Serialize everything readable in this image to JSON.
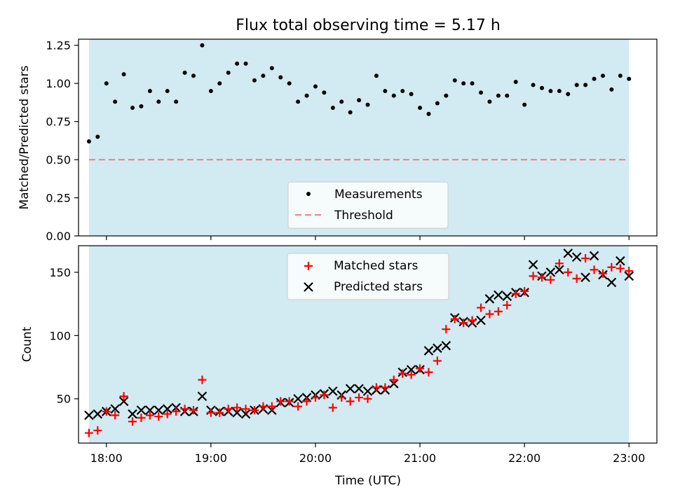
{
  "title": "Flux total observing time = 5.17 h",
  "colors": {
    "shade": "#add8e6",
    "measurement": "#000000",
    "threshold": "#f08080",
    "matched": "#ff0000",
    "predicted": "#000000"
  },
  "chart_data": [
    {
      "type": "scatter",
      "ylabel": "Matched/Predicted stars",
      "xlabel": "",
      "xlim": [
        "17:44",
        "23:16"
      ],
      "ylim": [
        0,
        1.29
      ],
      "grid": false,
      "legend_position": "lower-center",
      "yticks": [
        "0.00",
        "0.25",
        "0.50",
        "0.75",
        "1.00",
        "1.25"
      ],
      "observing_window": [
        "17:50",
        "23:00"
      ],
      "threshold": {
        "name": "Threshold",
        "value": 0.5,
        "style": "dashed"
      },
      "series": [
        {
          "name": "Measurements",
          "marker": "dot",
          "x": [
            "17:50",
            "17:55",
            "18:00",
            "18:05",
            "18:10",
            "18:15",
            "18:20",
            "18:25",
            "18:30",
            "18:35",
            "18:40",
            "18:45",
            "18:50",
            "18:55",
            "19:00",
            "19:05",
            "19:10",
            "19:15",
            "19:20",
            "19:25",
            "19:30",
            "19:35",
            "19:40",
            "19:45",
            "19:50",
            "19:55",
            "20:00",
            "20:05",
            "20:10",
            "20:15",
            "20:20",
            "20:25",
            "20:30",
            "20:35",
            "20:40",
            "20:45",
            "20:50",
            "20:55",
            "21:00",
            "21:05",
            "21:10",
            "21:15",
            "21:20",
            "21:25",
            "21:30",
            "21:35",
            "21:40",
            "21:45",
            "21:50",
            "21:55",
            "22:00",
            "22:05",
            "22:10",
            "22:15",
            "22:20",
            "22:25",
            "22:30",
            "22:35",
            "22:40",
            "22:45",
            "22:50",
            "22:55",
            "23:00"
          ],
          "y": [
            0.62,
            0.65,
            1.0,
            0.88,
            1.06,
            0.84,
            0.85,
            0.95,
            0.88,
            0.95,
            0.88,
            1.07,
            1.05,
            1.25,
            0.95,
            1.0,
            1.07,
            1.13,
            1.13,
            1.02,
            1.05,
            1.1,
            1.04,
            1.0,
            0.88,
            0.92,
            0.98,
            0.94,
            0.84,
            0.88,
            0.81,
            0.89,
            0.86,
            1.05,
            0.95,
            0.92,
            0.95,
            0.93,
            0.84,
            0.8,
            0.87,
            0.92,
            1.02,
            1.0,
            1.0,
            0.94,
            0.88,
            0.92,
            0.92,
            1.01,
            0.86,
            0.99,
            0.97,
            0.95,
            0.95,
            0.93,
            0.99,
            0.99,
            1.03,
            1.05,
            0.96,
            1.05,
            1.03
          ]
        }
      ]
    },
    {
      "type": "scatter",
      "ylabel": "Count",
      "xlabel": "Time (UTC)",
      "xlim": [
        "17:44",
        "23:16"
      ],
      "ylim": [
        15,
        171
      ],
      "grid": false,
      "legend_position": "upper-center",
      "yticks": [
        "50",
        "100",
        "150"
      ],
      "xticks": [
        "18:00",
        "19:00",
        "20:00",
        "21:00",
        "22:00",
        "23:00"
      ],
      "observing_window": [
        "17:50",
        "23:00"
      ],
      "x": [
        "17:50",
        "17:55",
        "18:00",
        "18:05",
        "18:10",
        "18:15",
        "18:20",
        "18:25",
        "18:30",
        "18:35",
        "18:40",
        "18:45",
        "18:50",
        "18:55",
        "19:00",
        "19:05",
        "19:10",
        "19:15",
        "19:20",
        "19:25",
        "19:30",
        "19:35",
        "19:40",
        "19:45",
        "19:50",
        "19:55",
        "20:00",
        "20:05",
        "20:10",
        "20:15",
        "20:20",
        "20:25",
        "20:30",
        "20:35",
        "20:40",
        "20:45",
        "20:50",
        "20:55",
        "21:00",
        "21:05",
        "21:10",
        "21:15",
        "21:20",
        "21:25",
        "21:30",
        "21:35",
        "21:40",
        "21:45",
        "21:50",
        "21:55",
        "22:00",
        "22:05",
        "22:10",
        "22:15",
        "22:20",
        "22:25",
        "22:30",
        "22:35",
        "22:40",
        "22:45",
        "22:50",
        "22:55",
        "23:00"
      ],
      "series": [
        {
          "name": "Matched stars",
          "marker": "plus",
          "values": [
            23,
            25,
            40,
            37,
            52,
            32,
            35,
            37,
            36,
            38,
            40,
            42,
            41,
            65,
            39,
            39,
            42,
            43,
            42,
            41,
            44,
            44,
            48,
            48,
            44,
            48,
            51,
            53,
            43,
            51,
            48,
            51,
            50,
            59,
            59,
            65,
            70,
            69,
            74,
            71,
            80,
            105,
            113,
            110,
            112,
            122,
            117,
            119,
            124,
            133,
            135,
            147,
            146,
            144,
            157,
            150,
            145,
            161,
            152,
            149,
            154,
            153,
            151
          ]
        },
        {
          "name": "Predicted stars",
          "marker": "x",
          "values": [
            37,
            38,
            40,
            42,
            48,
            38,
            41,
            41,
            41,
            42,
            43,
            40,
            40,
            52,
            41,
            40,
            40,
            39,
            38,
            41,
            42,
            41,
            47,
            47,
            50,
            51,
            53,
            54,
            56,
            53,
            58,
            58,
            56,
            57,
            57,
            62,
            71,
            73,
            73,
            88,
            90,
            92,
            114,
            111,
            110,
            112,
            129,
            132,
            131,
            134,
            134,
            156,
            147,
            150,
            152,
            165,
            162,
            146,
            163,
            148,
            142,
            159,
            147
          ]
        }
      ]
    }
  ]
}
